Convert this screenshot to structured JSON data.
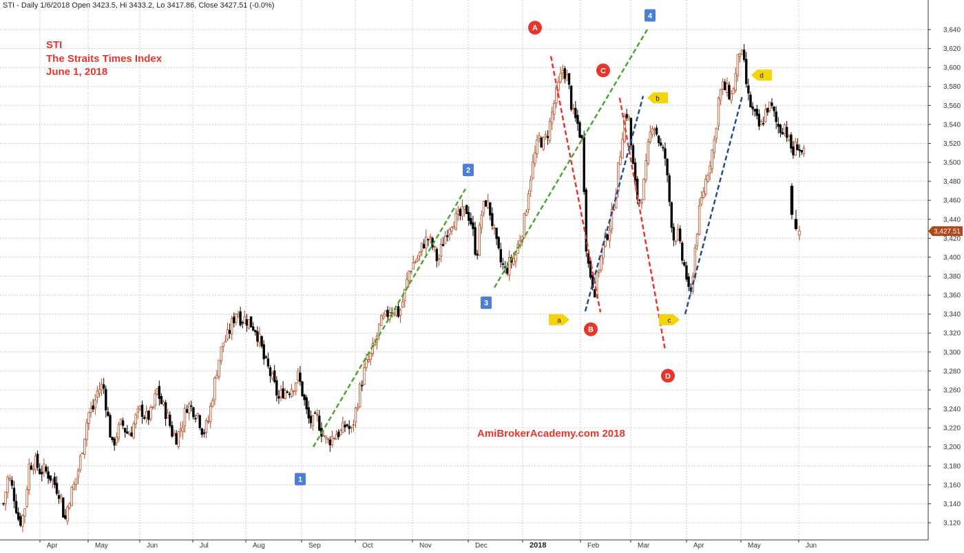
{
  "header": {
    "text": "STI - Daily 1/6/2018 Open 3423.5, Hi 3433.2, Lo 3417.86, Close 3427.51 (-0.0%)"
  },
  "title_block": {
    "line1": "STI",
    "line2": "The Straits Times Index",
    "line3": "June 1, 2018"
  },
  "watermark": "AmiBrokerAcademy.com  2018",
  "last_price": {
    "label": "3,427.51",
    "value": 3427.51,
    "color": "#b5451b"
  },
  "colors": {
    "up_candle": "#b5451b",
    "down_candle": "#000000",
    "green_trend": "#4aa52e",
    "red_trend": "#e8352c",
    "blue_trend": "#1f4e8c",
    "wave_box": "#4a7fd6",
    "wave_circle": "#e8352c",
    "abc_marker": "#f4d40b"
  },
  "chart_data": {
    "type": "candlestick",
    "symbol": "STI",
    "y_axis": {
      "min": 3110,
      "max": 3660,
      "ticks": [
        3120,
        3140,
        3160,
        3180,
        3200,
        3220,
        3240,
        3260,
        3280,
        3300,
        3320,
        3340,
        3360,
        3380,
        3400,
        3420,
        3440,
        3460,
        3480,
        3500,
        3520,
        3540,
        3560,
        3580,
        3600,
        3620,
        3640
      ],
      "tick_labels": [
        "3,120",
        "3,140",
        "3,160",
        "3,180",
        "3,200",
        "3,220",
        "3,240",
        "3,260",
        "3,280",
        "3,300",
        "3,320",
        "3,340",
        "3,360",
        "3,380",
        "3,400",
        "3,420",
        "3,440",
        "3,460",
        "3,480",
        "3,500",
        "3,520",
        "3,540",
        "3,560",
        "3,580",
        "3,600",
        "3,620",
        "3,640"
      ]
    },
    "x_axis": {
      "months": [
        {
          "label": "Apr",
          "pos": 58
        },
        {
          "label": "May",
          "pos": 128
        },
        {
          "label": "Jun",
          "pos": 203
        },
        {
          "label": "Jul",
          "pos": 280
        },
        {
          "label": "Aug",
          "pos": 357
        },
        {
          "label": "Sep",
          "pos": 438
        },
        {
          "label": "Oct",
          "pos": 516
        },
        {
          "label": "Nov",
          "pos": 599
        },
        {
          "label": "Dec",
          "pos": 680
        },
        {
          "label": "2018",
          "pos": 759,
          "bold": true
        },
        {
          "label": "Feb",
          "pos": 843
        },
        {
          "label": "Mar",
          "pos": 916
        },
        {
          "label": "Apr",
          "pos": 997
        },
        {
          "label": "May",
          "pos": 1076
        },
        {
          "label": "Jun",
          "pos": 1160
        }
      ]
    },
    "grid": true,
    "price_path": [
      [
        5,
        3140
      ],
      [
        12,
        3170
      ],
      [
        20,
        3150
      ],
      [
        28,
        3120
      ],
      [
        35,
        3130
      ],
      [
        42,
        3180
      ],
      [
        50,
        3185
      ],
      [
        58,
        3175
      ],
      [
        65,
        3175
      ],
      [
        72,
        3170
      ],
      [
        80,
        3160
      ],
      [
        88,
        3150
      ],
      [
        94,
        3120
      ],
      [
        100,
        3145
      ],
      [
        108,
        3160
      ],
      [
        115,
        3180
      ],
      [
        122,
        3210
      ],
      [
        128,
        3235
      ],
      [
        135,
        3240
      ],
      [
        142,
        3260
      ],
      [
        150,
        3265
      ],
      [
        157,
        3230
      ],
      [
        163,
        3200
      ],
      [
        170,
        3215
      ],
      [
        177,
        3225
      ],
      [
        184,
        3215
      ],
      [
        190,
        3215
      ],
      [
        197,
        3230
      ],
      [
        205,
        3240
      ],
      [
        212,
        3230
      ],
      [
        220,
        3235
      ],
      [
        228,
        3260
      ],
      [
        235,
        3245
      ],
      [
        242,
        3235
      ],
      [
        250,
        3215
      ],
      [
        257,
        3210
      ],
      [
        265,
        3225
      ],
      [
        272,
        3245
      ],
      [
        280,
        3240
      ],
      [
        287,
        3235
      ],
      [
        295,
        3215
      ],
      [
        302,
        3225
      ],
      [
        310,
        3260
      ],
      [
        317,
        3290
      ],
      [
        324,
        3310
      ],
      [
        330,
        3315
      ],
      [
        337,
        3330
      ],
      [
        344,
        3345
      ],
      [
        350,
        3335
      ],
      [
        357,
        3335
      ],
      [
        364,
        3330
      ],
      [
        371,
        3325
      ],
      [
        378,
        3310
      ],
      [
        384,
        3290
      ],
      [
        391,
        3280
      ],
      [
        398,
        3265
      ],
      [
        405,
        3250
      ],
      [
        412,
        3260
      ],
      [
        419,
        3260
      ],
      [
        426,
        3265
      ],
      [
        433,
        3275
      ],
      [
        440,
        3255
      ],
      [
        447,
        3230
      ],
      [
        454,
        3225
      ],
      [
        461,
        3230
      ],
      [
        468,
        3215
      ],
      [
        475,
        3205
      ],
      [
        482,
        3210
      ],
      [
        489,
        3215
      ],
      [
        496,
        3215
      ],
      [
        503,
        3225
      ],
      [
        510,
        3215
      ],
      [
        517,
        3240
      ],
      [
        524,
        3265
      ],
      [
        531,
        3285
      ],
      [
        538,
        3295
      ],
      [
        545,
        3310
      ],
      [
        552,
        3330
      ],
      [
        559,
        3335
      ],
      [
        566,
        3345
      ],
      [
        573,
        3345
      ],
      [
        580,
        3340
      ],
      [
        587,
        3360
      ],
      [
        594,
        3385
      ],
      [
        601,
        3395
      ],
      [
        608,
        3400
      ],
      [
        615,
        3415
      ],
      [
        622,
        3420
      ],
      [
        629,
        3410
      ],
      [
        636,
        3395
      ],
      [
        643,
        3415
      ],
      [
        650,
        3430
      ],
      [
        657,
        3440
      ],
      [
        664,
        3440
      ],
      [
        671,
        3445
      ],
      [
        678,
        3450
      ],
      [
        685,
        3435
      ],
      [
        692,
        3400
      ],
      [
        699,
        3445
      ],
      [
        706,
        3460
      ],
      [
        713,
        3445
      ],
      [
        720,
        3415
      ],
      [
        727,
        3395
      ],
      [
        734,
        3385
      ],
      [
        741,
        3395
      ],
      [
        748,
        3400
      ],
      [
        755,
        3420
      ],
      [
        762,
        3440
      ],
      [
        769,
        3480
      ],
      [
        776,
        3505
      ],
      [
        783,
        3525
      ],
      [
        790,
        3520
      ],
      [
        797,
        3535
      ],
      [
        804,
        3560
      ],
      [
        811,
        3580
      ],
      [
        818,
        3600
      ],
      [
        825,
        3585
      ],
      [
        832,
        3550
      ],
      [
        839,
        3540
      ],
      [
        846,
        3520
      ],
      [
        852,
        3400
      ],
      [
        858,
        3380
      ],
      [
        864,
        3365
      ],
      [
        870,
        3390
      ],
      [
        876,
        3410
      ],
      [
        882,
        3425
      ],
      [
        888,
        3440
      ],
      [
        894,
        3470
      ],
      [
        900,
        3505
      ],
      [
        906,
        3545
      ],
      [
        912,
        3555
      ],
      [
        918,
        3505
      ],
      [
        924,
        3465
      ],
      [
        930,
        3460
      ],
      [
        936,
        3480
      ],
      [
        942,
        3520
      ],
      [
        948,
        3545
      ],
      [
        954,
        3530
      ],
      [
        960,
        3515
      ],
      [
        966,
        3505
      ],
      [
        972,
        3460
      ],
      [
        978,
        3420
      ],
      [
        984,
        3425
      ],
      [
        990,
        3400
      ],
      [
        996,
        3385
      ],
      [
        1002,
        3350
      ],
      [
        1008,
        3400
      ],
      [
        1014,
        3440
      ],
      [
        1020,
        3465
      ],
      [
        1026,
        3485
      ],
      [
        1032,
        3505
      ],
      [
        1038,
        3525
      ],
      [
        1044,
        3570
      ],
      [
        1050,
        3580
      ],
      [
        1056,
        3575
      ],
      [
        1062,
        3570
      ],
      [
        1068,
        3590
      ],
      [
        1074,
        3620
      ],
      [
        1080,
        3605
      ],
      [
        1086,
        3570
      ],
      [
        1092,
        3555
      ],
      [
        1098,
        3545
      ],
      [
        1104,
        3535
      ],
      [
        1110,
        3550
      ],
      [
        1116,
        3560
      ],
      [
        1122,
        3555
      ],
      [
        1128,
        3540
      ],
      [
        1134,
        3535
      ],
      [
        1140,
        3540
      ],
      [
        1146,
        3520
      ],
      [
        1152,
        3510
      ],
      [
        1158,
        3520
      ],
      [
        1164,
        3510
      ],
      [
        1170,
        3505
      ]
    ],
    "last_candles": [
      {
        "x": 1150,
        "open": 3475,
        "high": 3478,
        "low": 3440,
        "close": 3445
      },
      {
        "x": 1156,
        "open": 3440,
        "high": 3450,
        "low": 3428,
        "close": 3430
      },
      {
        "x": 1161,
        "open": 3423.5,
        "high": 3433.2,
        "low": 3417.86,
        "close": 3427.51
      }
    ],
    "trendlines": [
      {
        "color": "green",
        "from": [
          455,
          3200
        ],
        "to": [
          676,
          3472
        ]
      },
      {
        "color": "green",
        "from": [
          718,
          3368
        ],
        "to": [
          940,
          3640
        ]
      },
      {
        "color": "red",
        "from": [
          800,
          3612
        ],
        "to": [
          872,
          3342
        ]
      },
      {
        "color": "red",
        "from": [
          900,
          3568
        ],
        "to": [
          966,
          3302
        ]
      },
      {
        "color": "blue",
        "from": [
          850,
          3343
        ],
        "to": [
          934,
          3570
        ]
      },
      {
        "color": "blue",
        "from": [
          995,
          3340
        ],
        "to": [
          1078,
          3570
        ]
      }
    ],
    "wave_labels": [
      {
        "label": "1",
        "shape": "box",
        "x": 436,
        "y": 3166
      },
      {
        "label": "2",
        "shape": "box",
        "x": 680,
        "y": 3492
      },
      {
        "label": "3",
        "shape": "box",
        "x": 706,
        "y": 3352
      },
      {
        "label": "4",
        "shape": "box",
        "x": 944,
        "y": 3655
      },
      {
        "label": "A",
        "shape": "circle",
        "x": 777,
        "y": 3642
      },
      {
        "label": "B",
        "shape": "circle",
        "x": 858,
        "y": 3324
      },
      {
        "label": "C",
        "shape": "circle",
        "x": 876,
        "y": 3597
      },
      {
        "label": "D",
        "shape": "circle",
        "x": 970,
        "y": 3275
      },
      {
        "label": "a",
        "shape": "tag-left",
        "x": 812,
        "y": 3334
      },
      {
        "label": "b",
        "shape": "tag-right",
        "x": 955,
        "y": 3568
      },
      {
        "label": "c",
        "shape": "tag-left",
        "x": 972,
        "y": 3334
      },
      {
        "label": "d",
        "shape": "tag-right",
        "x": 1106,
        "y": 3592
      }
    ]
  }
}
